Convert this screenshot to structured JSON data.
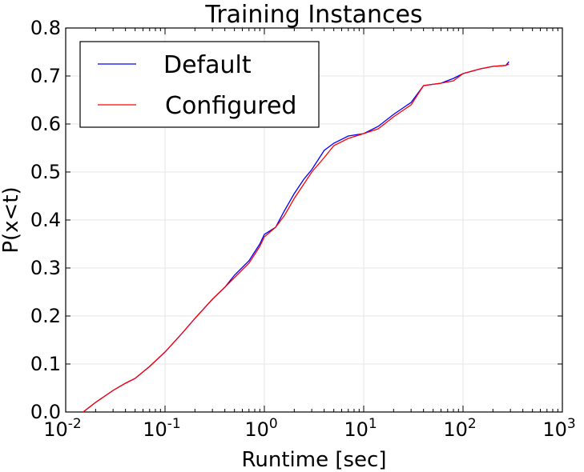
{
  "chart_data": {
    "type": "line",
    "title": "Training Instances",
    "xlabel": "Runtime [sec]",
    "ylabel": "P(x<t)",
    "xscale": "log",
    "xlim": [
      0.01,
      1000
    ],
    "ylim": [
      0.0,
      0.8
    ],
    "grid": true,
    "legend_position": "top-left",
    "x_ticks": [
      {
        "value": 0.01,
        "base": "10",
        "exp": "-2"
      },
      {
        "value": 0.1,
        "base": "10",
        "exp": "-1"
      },
      {
        "value": 1,
        "base": "10",
        "exp": "0"
      },
      {
        "value": 10,
        "base": "10",
        "exp": "1"
      },
      {
        "value": 100,
        "base": "10",
        "exp": "2"
      },
      {
        "value": 1000,
        "base": "10",
        "exp": "3"
      }
    ],
    "y_ticks": [
      {
        "value": 0.0,
        "label": "0.0"
      },
      {
        "value": 0.1,
        "label": "0.1"
      },
      {
        "value": 0.2,
        "label": "0.2"
      },
      {
        "value": 0.3,
        "label": "0.3"
      },
      {
        "value": 0.4,
        "label": "0.4"
      },
      {
        "value": 0.5,
        "label": "0.5"
      },
      {
        "value": 0.6,
        "label": "0.6"
      },
      {
        "value": 0.7,
        "label": "0.7"
      },
      {
        "value": 0.8,
        "label": "0.8"
      }
    ],
    "series": [
      {
        "name": "Default",
        "color": "#0000ff",
        "x": [
          0.015,
          0.02,
          0.03,
          0.04,
          0.05,
          0.07,
          0.1,
          0.15,
          0.2,
          0.3,
          0.4,
          0.5,
          0.7,
          0.9,
          1.0,
          1.3,
          1.6,
          2.0,
          2.5,
          3.0,
          4.0,
          5.0,
          7.0,
          10.0,
          14.0,
          20.0,
          30.0,
          40.0,
          60.0,
          80.0,
          100.0,
          150.0,
          200.0,
          270.0,
          290.0
        ],
        "y": [
          0.0,
          0.02,
          0.045,
          0.06,
          0.07,
          0.095,
          0.125,
          0.165,
          0.195,
          0.235,
          0.26,
          0.285,
          0.315,
          0.35,
          0.37,
          0.385,
          0.42,
          0.455,
          0.485,
          0.505,
          0.545,
          0.56,
          0.575,
          0.58,
          0.595,
          0.62,
          0.645,
          0.68,
          0.685,
          0.695,
          0.705,
          0.715,
          0.72,
          0.722,
          0.73
        ]
      },
      {
        "name": "Configured",
        "color": "#ff0000",
        "x": [
          0.015,
          0.02,
          0.03,
          0.04,
          0.05,
          0.07,
          0.1,
          0.15,
          0.2,
          0.3,
          0.4,
          0.5,
          0.7,
          0.9,
          1.0,
          1.3,
          1.6,
          2.0,
          2.5,
          3.0,
          4.0,
          5.0,
          7.0,
          10.0,
          14.0,
          20.0,
          30.0,
          40.0,
          60.0,
          80.0,
          100.0,
          150.0,
          200.0,
          270.0,
          290.0
        ],
        "y": [
          0.0,
          0.02,
          0.045,
          0.06,
          0.07,
          0.095,
          0.125,
          0.165,
          0.195,
          0.235,
          0.26,
          0.28,
          0.31,
          0.345,
          0.365,
          0.385,
          0.41,
          0.445,
          0.475,
          0.5,
          0.53,
          0.555,
          0.57,
          0.58,
          0.59,
          0.615,
          0.64,
          0.68,
          0.685,
          0.69,
          0.705,
          0.715,
          0.72,
          0.722,
          0.725
        ]
      }
    ]
  }
}
